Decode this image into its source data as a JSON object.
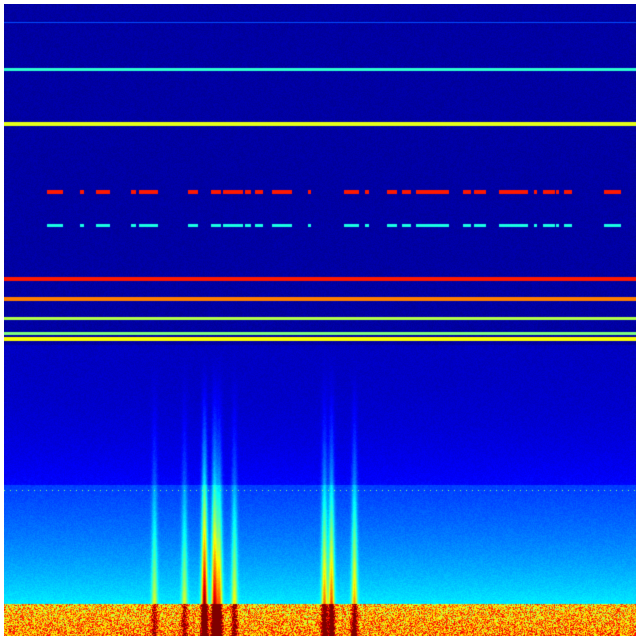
{
  "image": {
    "kind": "spectrogram",
    "colormap": [
      "#00007f",
      "#0000ff",
      "#007fff",
      "#00ffff",
      "#7fff7f",
      "#ffff00",
      "#ff7f00",
      "#ff0000",
      "#7f0000"
    ],
    "border_color": "#ffffff"
  }
}
